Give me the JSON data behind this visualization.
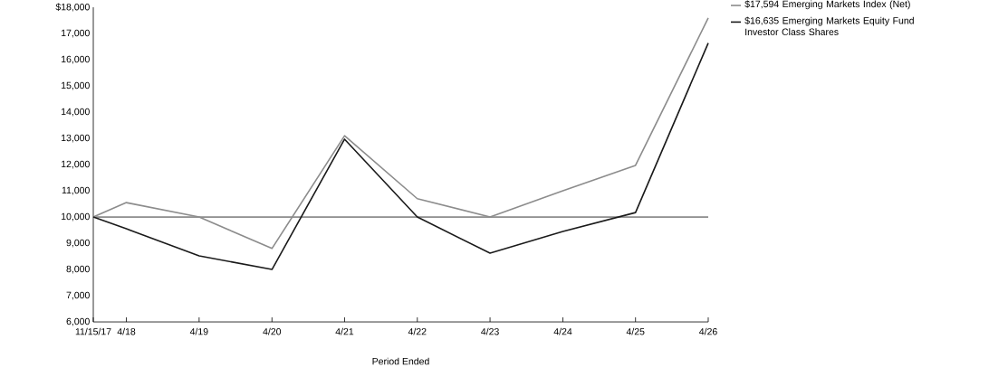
{
  "chart_data": {
    "type": "line",
    "xlabel": "Period Ended",
    "x": [
      "2017-11-15",
      "2018-04-30",
      "2019-04-30",
      "2020-04-30",
      "2021-04-30",
      "2022-04-30",
      "2023-04-30",
      "2024-04-30",
      "2025-04-30",
      "2026-04-30"
    ],
    "series": [
      {
        "name": "$17,594 Emerging Markets Index (Net)",
        "color": "#8c8c8c",
        "values": [
          10000,
          10550,
          10000,
          8800,
          13100,
          10700,
          10000,
          11000,
          11970,
          17594
        ]
      },
      {
        "name": "$16,635 Emerging Markets Equity Fund Investor Class Shares",
        "color": "#1a1a1a",
        "values": [
          10000,
          9550,
          8520,
          8000,
          12970,
          10000,
          8620,
          9450,
          10170,
          16635
        ]
      }
    ],
    "xlim": [
      "2017-11-15",
      "2026-04-30"
    ],
    "xticks": [
      {
        "value": "2017-11-15",
        "label": "11/15/17"
      },
      {
        "value": "2018-04-30",
        "label": "4/18"
      },
      {
        "value": "2019-04-30",
        "label": "4/19"
      },
      {
        "value": "2020-04-30",
        "label": "4/20"
      },
      {
        "value": "2021-04-30",
        "label": "4/21"
      },
      {
        "value": "2022-04-30",
        "label": "4/22"
      },
      {
        "value": "2023-04-30",
        "label": "4/23"
      },
      {
        "value": "2024-04-30",
        "label": "4/24"
      },
      {
        "value": "2025-04-30",
        "label": "4/25"
      },
      {
        "value": "2026-04-30",
        "label": "4/26"
      }
    ],
    "ylim": [
      6000,
      18000
    ],
    "yticks": [
      {
        "value": 6000,
        "label": "6,000"
      },
      {
        "value": 7000,
        "label": "7,000"
      },
      {
        "value": 8000,
        "label": "8,000"
      },
      {
        "value": 9000,
        "label": "9,000"
      },
      {
        "value": 10000,
        "label": "10,000"
      },
      {
        "value": 11000,
        "label": "11,000"
      },
      {
        "value": 12000,
        "label": "12,000"
      },
      {
        "value": 13000,
        "label": "13,000"
      },
      {
        "value": 14000,
        "label": "14,000"
      },
      {
        "value": 15000,
        "label": "15,000"
      },
      {
        "value": 16000,
        "label": "16,000"
      },
      {
        "value": 17000,
        "label": "17,000"
      },
      {
        "value": 18000,
        "label": "$18,000"
      }
    ],
    "ref_lines": [
      {
        "axis": "y",
        "value": 10000,
        "color": "#000000"
      }
    ],
    "legend": "top right",
    "marker": "none",
    "line_style": "solid"
  }
}
